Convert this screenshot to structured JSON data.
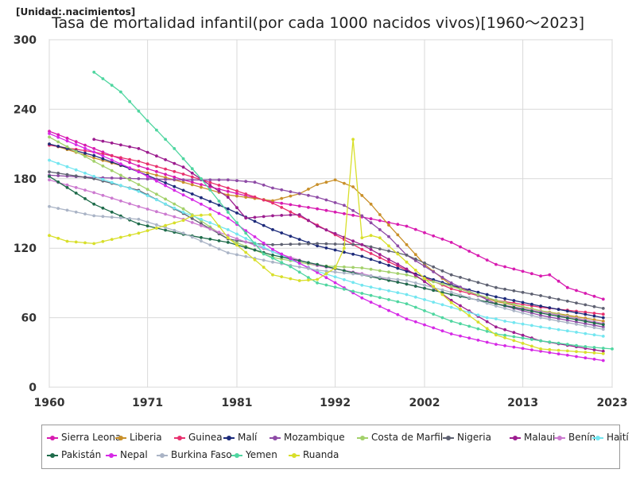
{
  "chart_data": {
    "type": "line",
    "title": "Tasa de mortalidad infantil(por cada 1000 nacidos vivos)[1960～2023]",
    "unit_label": "[Unidad:.nacimientos]",
    "xlabel": "",
    "ylabel": "",
    "xlim": [
      1960,
      2023
    ],
    "ylim": [
      0,
      300
    ],
    "x_ticks": [
      "1960",
      "1971",
      "1981",
      "1992",
      "2002",
      "2013",
      "2023"
    ],
    "x_tick_values": [
      1960,
      1971,
      1981,
      1992,
      2002,
      2013,
      2023
    ],
    "y_ticks": [
      "0",
      "60",
      "120",
      "180",
      "240",
      "300"
    ],
    "y_tick_values": [
      0,
      60,
      120,
      180,
      240,
      300
    ],
    "grid": true,
    "legend_position": "bottom",
    "series": [
      {
        "name": "Sierra Leona",
        "color": "#d81bb0",
        "start": 1960,
        "end": 2022,
        "points": [
          [
            1960,
            221
          ],
          [
            1965,
            206
          ],
          [
            1970,
            191
          ],
          [
            1975,
            179
          ],
          [
            1980,
            169
          ],
          [
            1985,
            160
          ],
          [
            1990,
            154
          ],
          [
            1995,
            147
          ],
          [
            2000,
            139
          ],
          [
            2005,
            125
          ],
          [
            2010,
            106
          ],
          [
            2013,
            100
          ],
          [
            2015,
            96
          ],
          [
            2016,
            97
          ],
          [
            2018,
            86
          ],
          [
            2022,
            76
          ]
        ]
      },
      {
        "name": "Liberia",
        "color": "#c9902a",
        "start": 1960,
        "end": 2022,
        "points": [
          [
            1960,
            210
          ],
          [
            1965,
            198
          ],
          [
            1970,
            187
          ],
          [
            1975,
            177
          ],
          [
            1980,
            166
          ],
          [
            1985,
            161
          ],
          [
            1988,
            167
          ],
          [
            1990,
            175
          ],
          [
            1992,
            179
          ],
          [
            1994,
            173
          ],
          [
            1996,
            158
          ],
          [
            1998,
            140
          ],
          [
            2000,
            123
          ],
          [
            2002,
            106
          ],
          [
            2005,
            88
          ],
          [
            2010,
            74
          ],
          [
            2015,
            66
          ],
          [
            2022,
            57
          ]
        ]
      },
      {
        "name": "Guinea",
        "color": "#e8306e",
        "start": 1960,
        "end": 2022,
        "points": [
          [
            1960,
            209
          ],
          [
            1965,
            203
          ],
          [
            1970,
            195
          ],
          [
            1975,
            184
          ],
          [
            1980,
            172
          ],
          [
            1985,
            159
          ],
          [
            1990,
            140
          ],
          [
            1995,
            119
          ],
          [
            2000,
            101
          ],
          [
            2005,
            85
          ],
          [
            2010,
            75
          ],
          [
            2015,
            69
          ],
          [
            2022,
            63
          ]
        ]
      },
      {
        "name": "Malí",
        "color": "#1c2a7a",
        "start": 1960,
        "end": 2022,
        "points": [
          [
            1960,
            210
          ],
          [
            1965,
            200
          ],
          [
            1970,
            186
          ],
          [
            1975,
            170
          ],
          [
            1980,
            154
          ],
          [
            1985,
            136
          ],
          [
            1990,
            122
          ],
          [
            1995,
            113
          ],
          [
            2000,
            100
          ],
          [
            2005,
            88
          ],
          [
            2010,
            78
          ],
          [
            2015,
            70
          ],
          [
            2022,
            60
          ]
        ]
      },
      {
        "name": "Mozambique",
        "color": "#8e4ba6",
        "start": 1960,
        "end": 2022,
        "points": [
          [
            1960,
            183
          ],
          [
            1965,
            181
          ],
          [
            1970,
            180
          ],
          [
            1975,
            179
          ],
          [
            1980,
            179
          ],
          [
            1983,
            177
          ],
          [
            1985,
            172
          ],
          [
            1990,
            164
          ],
          [
            1993,
            157
          ],
          [
            1995,
            148
          ],
          [
            1998,
            130
          ],
          [
            2000,
            114
          ],
          [
            2005,
            90
          ],
          [
            2010,
            72
          ],
          [
            2015,
            62
          ],
          [
            2022,
            52
          ]
        ]
      },
      {
        "name": "Costa de Marfil",
        "color": "#a3d16b",
        "start": 1960,
        "end": 2022,
        "points": [
          [
            1960,
            216
          ],
          [
            1965,
            195
          ],
          [
            1970,
            175
          ],
          [
            1975,
            154
          ],
          [
            1980,
            128
          ],
          [
            1985,
            112
          ],
          [
            1990,
            105
          ],
          [
            1995,
            103
          ],
          [
            2000,
            97
          ],
          [
            2005,
            87
          ],
          [
            2010,
            75
          ],
          [
            2015,
            66
          ],
          [
            2022,
            55
          ]
        ]
      },
      {
        "name": "Nigeria",
        "color": "#5f6272",
        "start": 1960,
        "end": 2022,
        "points": [
          [
            1960,
            186
          ],
          [
            1965,
            180
          ],
          [
            1970,
            170
          ],
          [
            1975,
            150
          ],
          [
            1980,
            128
          ],
          [
            1983,
            124
          ],
          [
            1985,
            123
          ],
          [
            1990,
            124
          ],
          [
            1995,
            123
          ],
          [
            2000,
            114
          ],
          [
            2005,
            97
          ],
          [
            2010,
            86
          ],
          [
            2015,
            79
          ],
          [
            2022,
            68
          ]
        ]
      },
      {
        "name": "Malaui",
        "color": "#9c1d8f",
        "start": 1965,
        "end": 2022,
        "points": [
          [
            1965,
            214
          ],
          [
            1970,
            206
          ],
          [
            1975,
            190
          ],
          [
            1980,
            164
          ],
          [
            1982,
            146
          ],
          [
            1985,
            148
          ],
          [
            1988,
            149
          ],
          [
            1990,
            139
          ],
          [
            1995,
            123
          ],
          [
            2000,
            102
          ],
          [
            2005,
            75
          ],
          [
            2010,
            52
          ],
          [
            2015,
            40
          ],
          [
            2022,
            31
          ]
        ]
      },
      {
        "name": "Benín",
        "color": "#cc7ad0",
        "start": 1960,
        "end": 2022,
        "points": [
          [
            1960,
            179
          ],
          [
            1965,
            168
          ],
          [
            1970,
            156
          ],
          [
            1975,
            145
          ],
          [
            1980,
            131
          ],
          [
            1985,
            117
          ],
          [
            1990,
            105
          ],
          [
            1995,
            98
          ],
          [
            2000,
            89
          ],
          [
            2005,
            80
          ],
          [
            2010,
            72
          ],
          [
            2015,
            65
          ],
          [
            2022,
            55
          ]
        ]
      },
      {
        "name": "Haití",
        "color": "#73e6f0",
        "start": 1960,
        "end": 2022,
        "points": [
          [
            1960,
            196
          ],
          [
            1965,
            182
          ],
          [
            1970,
            169
          ],
          [
            1975,
            151
          ],
          [
            1980,
            136
          ],
          [
            1985,
            117
          ],
          [
            1990,
            100
          ],
          [
            1995,
            88
          ],
          [
            2000,
            80
          ],
          [
            2005,
            69
          ],
          [
            2009,
            60
          ],
          [
            2010,
            59
          ],
          [
            2011,
            57
          ],
          [
            2015,
            52
          ],
          [
            2022,
            44
          ]
        ]
      },
      {
        "name": "Pakistán",
        "color": "#1e6b4a",
        "start": 1960,
        "end": 2022,
        "points": [
          [
            1960,
            182
          ],
          [
            1965,
            158
          ],
          [
            1970,
            141
          ],
          [
            1975,
            132
          ],
          [
            1980,
            125
          ],
          [
            1985,
            114
          ],
          [
            1990,
            106
          ],
          [
            1995,
            97
          ],
          [
            2000,
            89
          ],
          [
            2005,
            80
          ],
          [
            2010,
            72
          ],
          [
            2015,
            64
          ],
          [
            2022,
            54
          ]
        ]
      },
      {
        "name": "Nepal",
        "color": "#d629e6",
        "start": 1960,
        "end": 2022,
        "points": [
          [
            1960,
            219
          ],
          [
            1965,
            203
          ],
          [
            1970,
            186
          ],
          [
            1975,
            166
          ],
          [
            1980,
            146
          ],
          [
            1985,
            119
          ],
          [
            1990,
            99
          ],
          [
            1995,
            77
          ],
          [
            2000,
            59
          ],
          [
            2005,
            46
          ],
          [
            2010,
            37
          ],
          [
            2015,
            31
          ],
          [
            2022,
            23
          ]
        ]
      },
      {
        "name": "Burkina Faso",
        "color": "#aab4c6",
        "start": 1960,
        "end": 2022,
        "points": [
          [
            1960,
            156
          ],
          [
            1965,
            148
          ],
          [
            1970,
            145
          ],
          [
            1975,
            133
          ],
          [
            1980,
            116
          ],
          [
            1985,
            108
          ],
          [
            1990,
            101
          ],
          [
            1995,
            97
          ],
          [
            2000,
            92
          ],
          [
            2005,
            82
          ],
          [
            2010,
            70
          ],
          [
            2015,
            60
          ],
          [
            2022,
            50
          ]
        ]
      },
      {
        "name": "Yemen",
        "color": "#4fd6a0",
        "start": 1965,
        "end": 2023,
        "points": [
          [
            1965,
            272
          ],
          [
            1968,
            255
          ],
          [
            1971,
            230
          ],
          [
            1974,
            206
          ],
          [
            1977,
            180
          ],
          [
            1980,
            151
          ],
          [
            1984,
            115
          ],
          [
            1987,
            104
          ],
          [
            1990,
            90
          ],
          [
            1995,
            81
          ],
          [
            2000,
            72
          ],
          [
            2005,
            57
          ],
          [
            2010,
            46
          ],
          [
            2015,
            40
          ],
          [
            2020,
            35
          ],
          [
            2023,
            33
          ]
        ]
      },
      {
        "name": "Ruanda",
        "color": "#d8df2a",
        "start": 1960,
        "end": 2022,
        "points": [
          [
            1960,
            131
          ],
          [
            1962,
            126
          ],
          [
            1965,
            124
          ],
          [
            1970,
            133
          ],
          [
            1975,
            144
          ],
          [
            1976,
            148
          ],
          [
            1978,
            149
          ],
          [
            1980,
            129
          ],
          [
            1983,
            110
          ],
          [
            1985,
            97
          ],
          [
            1988,
            92
          ],
          [
            1990,
            93
          ],
          [
            1992,
            103
          ],
          [
            1993,
            120
          ],
          [
            1994,
            214
          ],
          [
            1995,
            129
          ],
          [
            1996,
            131
          ],
          [
            1997,
            129
          ],
          [
            2000,
            108
          ],
          [
            2005,
            73
          ],
          [
            2010,
            45
          ],
          [
            2015,
            33
          ],
          [
            2022,
            29
          ]
        ]
      }
    ]
  }
}
